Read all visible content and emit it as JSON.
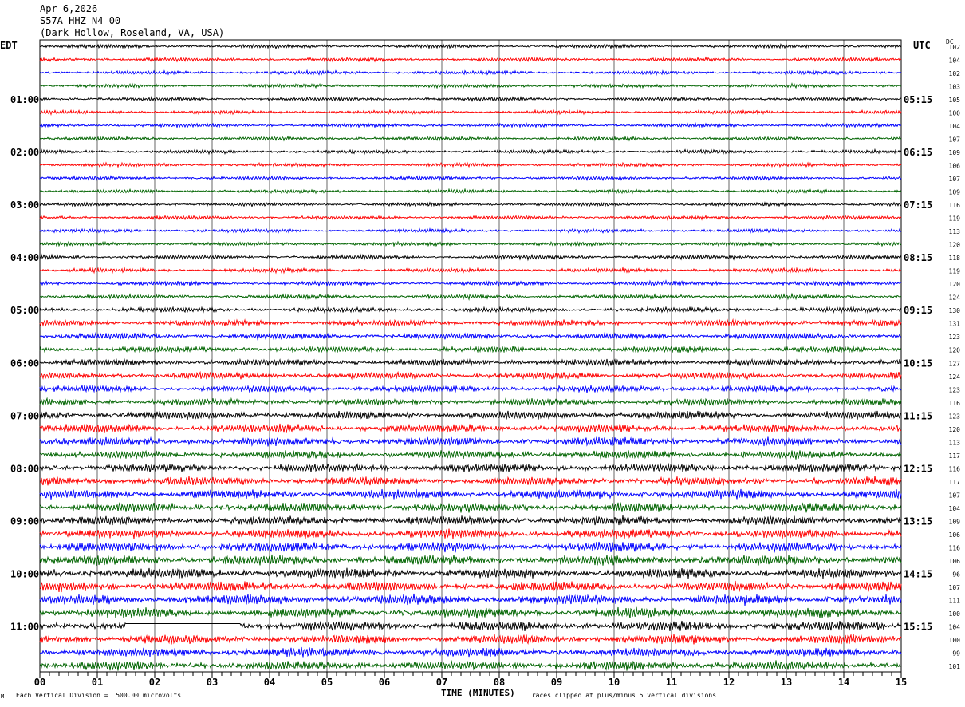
{
  "header": {
    "date": "Apr 6,2026",
    "station": "S57A HHZ N4 00",
    "location": "(Dark Hollow, Roseland, VA, USA)"
  },
  "left_tz": "EDT",
  "right_tz": "UTC",
  "dc_label": "DC",
  "footer": {
    "scale": "Each Vertical Division =  500.00 microvolts",
    "xlabel": "TIME (MINUTES)",
    "clip": "Traces clipped at plus/minus 5 vertical divisions"
  },
  "chart_data": {
    "type": "line",
    "title": "",
    "xlabel": "TIME (MINUTES)",
    "xlim": [
      0,
      15
    ],
    "x_ticks": [
      "00",
      "01",
      "02",
      "03",
      "04",
      "05",
      "06",
      "07",
      "08",
      "09",
      "10",
      "11",
      "12",
      "13",
      "14",
      "15"
    ],
    "grid": "vertical lines every minute",
    "trace_colors": [
      "#000000",
      "#ff0000",
      "#0000ff",
      "#006400"
    ],
    "left_hour_labels": [
      "01:00",
      "02:00",
      "03:00",
      "04:00",
      "05:00",
      "06:00",
      "07:00",
      "08:00",
      "09:00",
      "10:00",
      "11:00"
    ],
    "right_hour_labels": [
      "05:15",
      "06:15",
      "07:15",
      "08:15",
      "09:15",
      "10:15",
      "11:15",
      "12:15",
      "13:15",
      "14:15",
      "15:15"
    ],
    "dc_offsets": [
      102,
      104,
      102,
      103,
      105,
      100,
      104,
      107,
      109,
      106,
      107,
      109,
      116,
      119,
      113,
      120,
      118,
      119,
      120,
      124,
      130,
      131,
      123,
      120,
      127,
      124,
      123,
      116,
      123,
      120,
      113,
      117,
      116,
      117,
      107,
      104,
      109,
      106,
      116,
      106,
      96,
      107,
      111,
      100,
      104,
      100,
      99,
      101
    ],
    "relative_amplitude": [
      0.3,
      0.3,
      0.3,
      0.3,
      0.3,
      0.3,
      0.3,
      0.3,
      0.3,
      0.3,
      0.3,
      0.3,
      0.3,
      0.3,
      0.3,
      0.3,
      0.35,
      0.35,
      0.35,
      0.35,
      0.4,
      0.5,
      0.5,
      0.5,
      0.55,
      0.55,
      0.55,
      0.55,
      0.65,
      0.7,
      0.7,
      0.65,
      0.7,
      0.7,
      0.75,
      0.75,
      0.75,
      0.75,
      0.8,
      0.8,
      0.8,
      0.8,
      0.8,
      0.8,
      0.8,
      0.75,
      0.75,
      0.75
    ]
  }
}
